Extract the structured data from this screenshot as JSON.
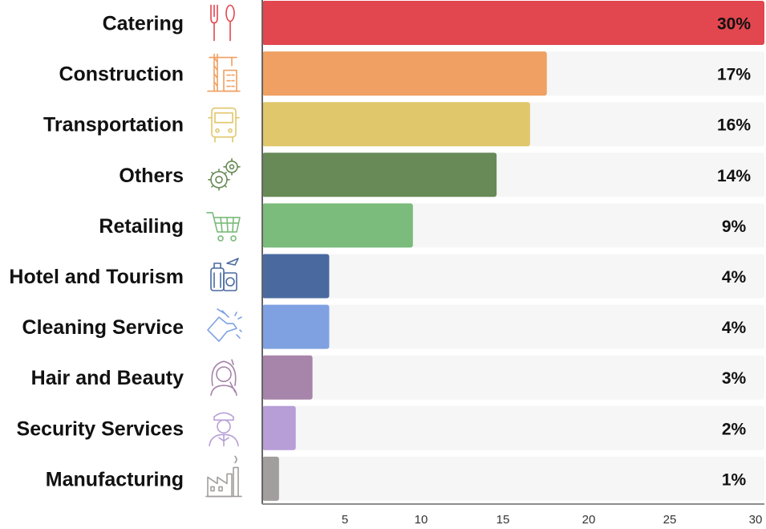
{
  "chart_data": {
    "type": "bar",
    "orientation": "horizontal",
    "categories": [
      "Catering",
      "Construction",
      "Transportation",
      "Others",
      "Retailing",
      "Hotel and Tourism",
      "Cleaning Service",
      "Hair and Beauty",
      "Security Services",
      "Manufacturing"
    ],
    "values": [
      30,
      17,
      16,
      14,
      9,
      4,
      4,
      3,
      2,
      1
    ],
    "value_labels": [
      "30%",
      "17%",
      "16%",
      "14%",
      "9%",
      "4%",
      "4%",
      "3%",
      "2%",
      "1%"
    ],
    "bar_colors": [
      "#e2464f",
      "#efa062",
      "#e0c76b",
      "#688a56",
      "#7bbb7b",
      "#4a6a9f",
      "#7fa1e2",
      "#a784aa",
      "#b79ed7",
      "#a29e9d"
    ],
    "icons": [
      "utensils-icon",
      "crane-building-icon",
      "bus-icon",
      "gears-icon",
      "shopping-cart-icon",
      "luggage-passport-icon",
      "cleaning-hand-icon",
      "woman-hairdresser-icon",
      "security-guard-icon",
      "factory-icon"
    ],
    "x_ticks": [
      5,
      10,
      15,
      20,
      25,
      30
    ],
    "xlim": [
      0,
      30
    ],
    "grid": false,
    "legend": "none",
    "background_track_color": "#f6f6f6",
    "axis_color": "#666666"
  }
}
